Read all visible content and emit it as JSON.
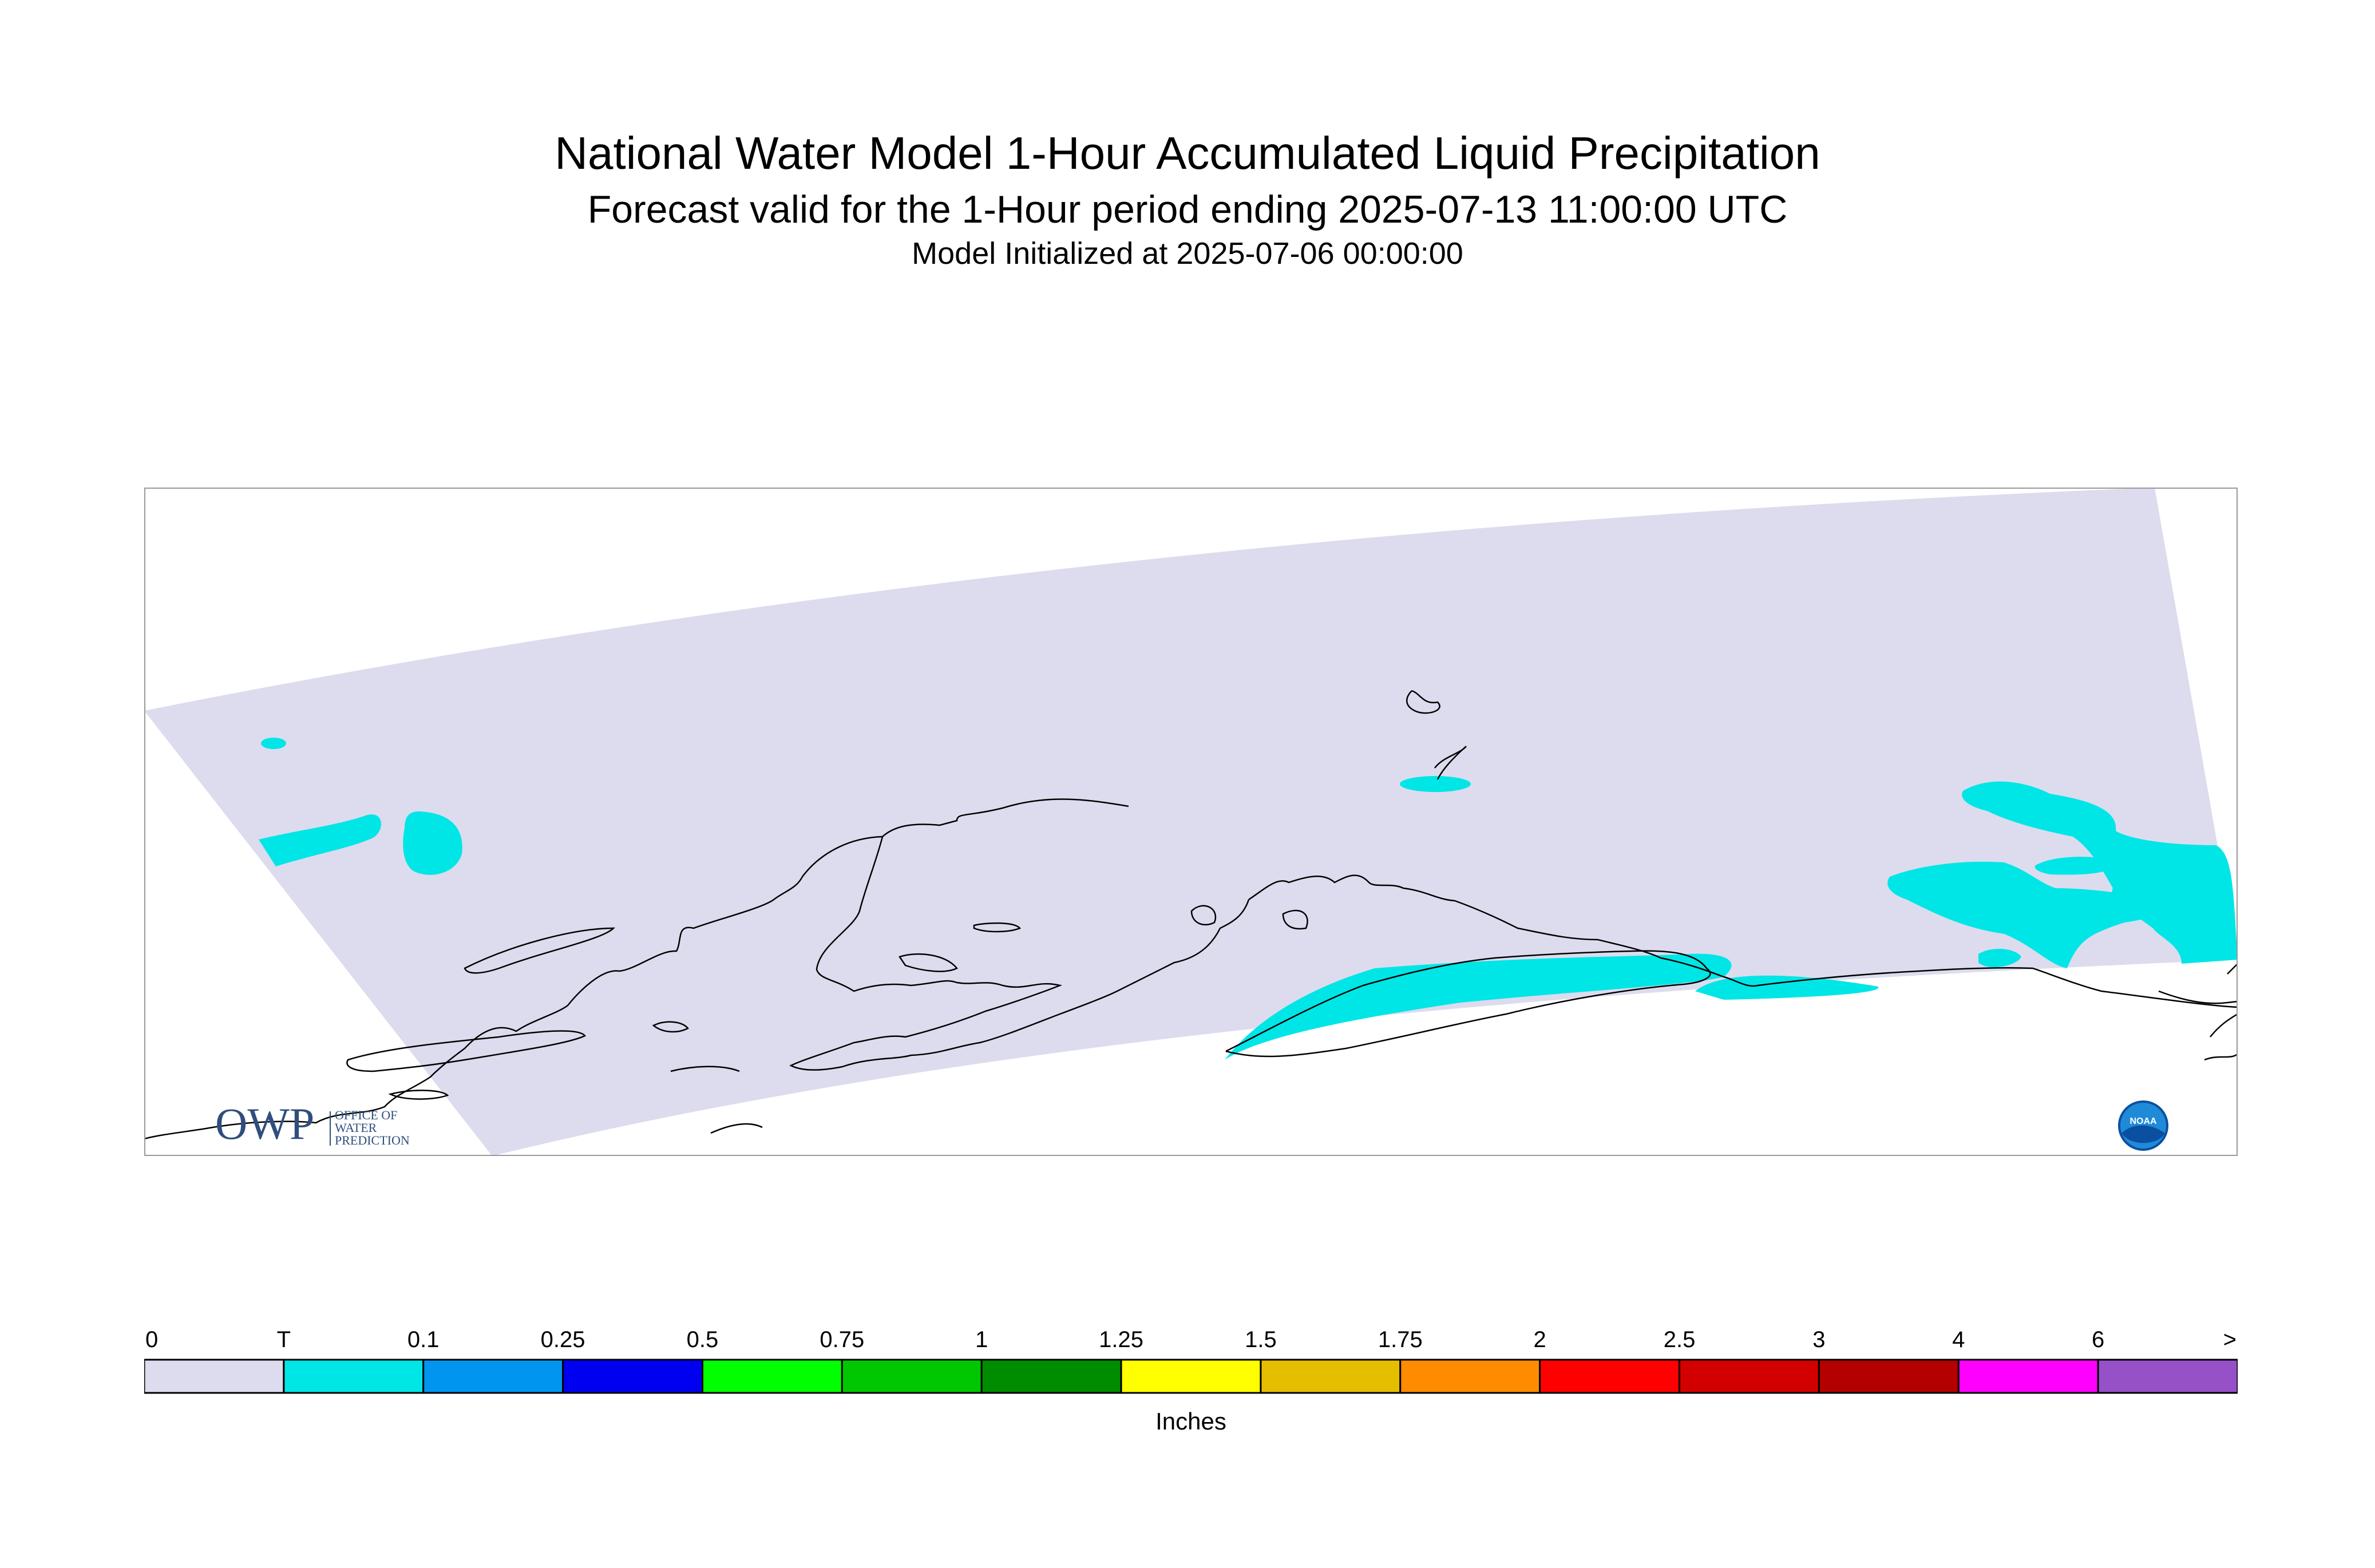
{
  "header": {
    "title": "National Water Model 1-Hour Accumulated Liquid Precipitation",
    "subtitle": "Forecast valid for the 1-Hour period ending 2025-07-13 11:00:00 UTC",
    "init": "Model Initialized at 2025-07-06 00:00:00"
  },
  "map": {
    "domain_fill": "#dcdcee",
    "precip_fill": "#00e6e6",
    "coast_color": "#000000"
  },
  "logos": {
    "owp": {
      "mark": "OWP",
      "line1": "OFFICE OF",
      "line2": "WATER",
      "line3": "PREDICTION"
    },
    "noaa": {
      "mark": "NOAA",
      "icon": "noaa-logo-icon"
    }
  },
  "legend": {
    "unit": "Inches",
    "labels": [
      "0",
      "T",
      "0.1",
      "0.25",
      "0.5",
      "0.75",
      "1",
      "1.25",
      "1.5",
      "1.75",
      "2",
      "2.5",
      "3",
      "4",
      "6",
      ">"
    ],
    "colors": [
      "#dcdcee",
      "#00e6e6",
      "#0096f0",
      "#0000f0",
      "#00ff00",
      "#00c800",
      "#008c00",
      "#ffff00",
      "#e6be00",
      "#ff8c00",
      "#ff0000",
      "#d20000",
      "#b40000",
      "#ff00ff",
      "#9650c8"
    ]
  }
}
